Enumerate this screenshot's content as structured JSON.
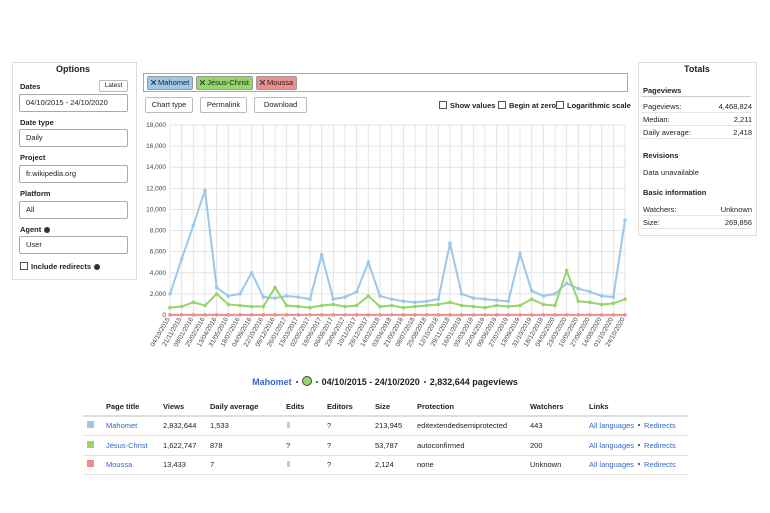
{
  "options": {
    "title": "Options",
    "dates_label": "Dates",
    "latest": "Latest",
    "dates": "04/10/2015 - 24/10/2020",
    "date_type_label": "Date type",
    "date_type": "Daily",
    "project_label": "Project",
    "project": "fr.wikipedia.org",
    "platform_label": "Platform",
    "platform": "All",
    "agent_label": "Agent",
    "agent": "User",
    "include_redirects": "Include redirects"
  },
  "chips": [
    "Mahomet",
    "Jésus-Christ",
    "Moussa"
  ],
  "toolbar": {
    "chart_type": "Chart type",
    "permalink": "Permalink",
    "download": "Download",
    "show_values": "Show values",
    "begin_at_zero": "Begin at zero",
    "log_scale": "Logarithmic scale"
  },
  "chart_data": {
    "type": "line",
    "log_scale": false,
    "begin_at_zero": false,
    "show_values": false,
    "grid": true,
    "categories": [
      "04/10/2015",
      "21/11/2015",
      "08/01/2016",
      "25/02/2016",
      "13/04/2016",
      "31/05/2016",
      "18/07/2016",
      "04/09/2016",
      "22/10/2016",
      "09/12/2016",
      "26/01/2017",
      "15/03/2017",
      "02/05/2017",
      "19/06/2017",
      "06/08/2017",
      "23/09/2017",
      "10/11/2017",
      "28/12/2017",
      "14/02/2018",
      "03/04/2018",
      "21/05/2018",
      "08/07/2018",
      "25/08/2018",
      "12/10/2018",
      "29/11/2018",
      "16/01/2019",
      "05/03/2019",
      "22/04/2019",
      "09/06/2019",
      "27/07/2019",
      "13/09/2019",
      "31/10/2019",
      "18/12/2019",
      "04/02/2020",
      "23/03/2020",
      "10/05/2020",
      "27/06/2020",
      "14/08/2020",
      "01/10/2020",
      "24/10/2020"
    ],
    "series": [
      {
        "name": "Mahomet",
        "color": "#9cc8ea",
        "values": [
          2000,
          5300,
          8500,
          11800,
          2600,
          1800,
          2000,
          4000,
          1700,
          1600,
          1800,
          1700,
          1500,
          5700,
          1500,
          1700,
          2200,
          5000,
          1800,
          1500,
          1300,
          1200,
          1300,
          1500,
          6800,
          2000,
          1600,
          1500,
          1400,
          1300,
          5800,
          2300,
          1800,
          2000,
          3000,
          2500,
          2200,
          1800,
          1700,
          9000
        ]
      },
      {
        "name": "Jésus-Christ",
        "color": "#95d66a",
        "values": [
          700,
          800,
          1200,
          900,
          2000,
          1000,
          900,
          800,
          800,
          2600,
          900,
          800,
          700,
          900,
          1000,
          800,
          900,
          1800,
          800,
          900,
          700,
          800,
          900,
          1000,
          1200,
          900,
          800,
          700,
          900,
          800,
          900,
          1500,
          1000,
          900,
          4200,
          1300,
          1200,
          1000,
          1100,
          1500
        ]
      },
      {
        "name": "Moussa",
        "color": "#f08c8c",
        "values": [
          7,
          8,
          7,
          6,
          9,
          7,
          7,
          8,
          6,
          7,
          7,
          6,
          7,
          8,
          7,
          7,
          6,
          8,
          7,
          7,
          6,
          7,
          7,
          8,
          7,
          7,
          6,
          7,
          7,
          8,
          7,
          7,
          6,
          7,
          9,
          7,
          7,
          6,
          7,
          8
        ]
      }
    ],
    "ylim": [
      0,
      18000
    ],
    "yticks": [
      0,
      {
        "value": 2000,
        "label": "2,000"
      },
      {
        "value": 4000,
        "label": "4,000"
      },
      {
        "value": 6000,
        "label": "6,000"
      },
      {
        "value": 8000,
        "label": "8,000"
      },
      {
        "value": 10000,
        "label": "10,000"
      },
      {
        "value": 12000,
        "label": "12,000"
      },
      {
        "value": 14000,
        "label": "14,000"
      },
      {
        "value": 16000,
        "label": "16,000"
      },
      {
        "value": 18000,
        "label": "18,000"
      }
    ]
  },
  "totals": {
    "title": "Totals",
    "pageviews_heading": "Pageviews",
    "rows": [
      [
        "Pageviews:",
        "4,468,824"
      ],
      [
        "Median:",
        "2,211"
      ],
      [
        "Daily average:",
        "2,418"
      ]
    ],
    "revisions_heading": "Revisions",
    "revisions": "Data unavailable",
    "basic_heading": "Basic information",
    "basic_rows": [
      [
        "Watchers:",
        "Unknown"
      ],
      [
        "Size:",
        "269,856"
      ]
    ]
  },
  "summary": {
    "page": "Mahomet",
    "dates": "04/10/2015 - 24/10/2020",
    "total": "2,832,644 pageviews"
  },
  "table": {
    "headers": [
      "Page title",
      "Views",
      "Daily average",
      "Edits",
      "Editors",
      "Size",
      "Protection",
      "Watchers",
      "Links"
    ],
    "rows": [
      [
        "Mahomet",
        "2,832,644",
        "1,533",
        "",
        "?",
        "213,945",
        "editextendedsemiprotected",
        "443"
      ],
      [
        "Jésus-Christ",
        "1,622,747",
        "878",
        "?",
        "?",
        "53,787",
        "autoconfirmed",
        "200"
      ],
      [
        "Moussa",
        "13,433",
        "7",
        "",
        "?",
        "2,124",
        "none",
        "Unknown"
      ]
    ],
    "links": [
      "All languages",
      "Redirects"
    ]
  }
}
